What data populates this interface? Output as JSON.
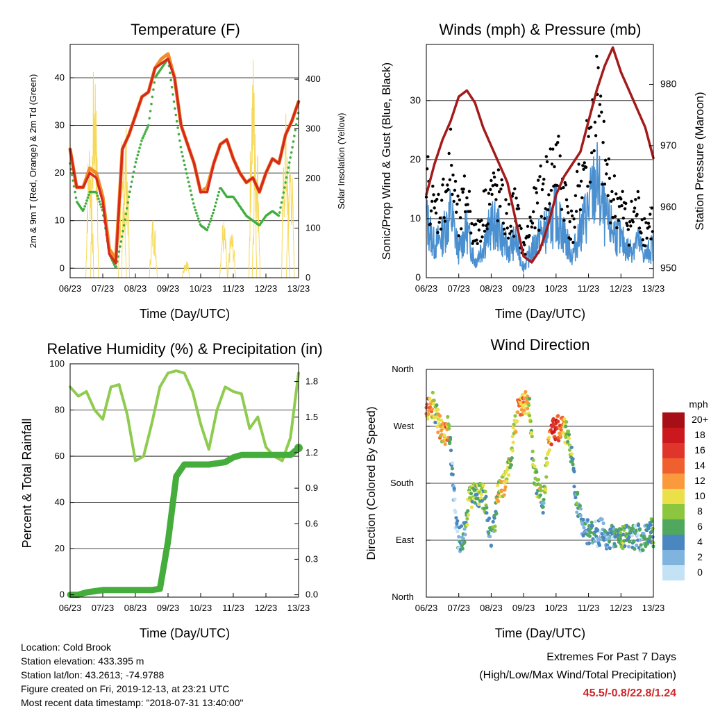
{
  "panels": {
    "temperature": {
      "title": "Temperature (F)",
      "ylabel_left": "2m & 9m T (Red, Orange) & 2m Td (Green)",
      "ylabel_right": "Solar Insolation (Yellow)",
      "xlabel": "Time (Day/UTC)"
    },
    "winds": {
      "title": "Winds (mph) & Pressure (mb)",
      "ylabel_left": "Sonic/Prop Wind & Gust (Blue, Black)",
      "ylabel_right": "Station Pressure (Maroon)",
      "xlabel": "Time (Day/UTC)"
    },
    "humidity": {
      "title": "Relative Humidity (%) & Precipitation (in)",
      "ylabel_left": "Percent & Total Rainfall",
      "xlabel": "Time (Day/UTC)"
    },
    "direction": {
      "title": "Wind Direction",
      "ylabel_left": "Direction (Colored By Speed)",
      "xlabel": "Time (Day/UTC)"
    }
  },
  "colorbar": {
    "unit": "mph",
    "labels": [
      "20+",
      "18",
      "16",
      "14",
      "12",
      "10",
      "8",
      "6",
      "4",
      "2",
      "0"
    ],
    "colors": [
      "#a50f15",
      "#cb181d",
      "#e0352b",
      "#f0602e",
      "#fb9a3c",
      "#ebe04a",
      "#8cc63f",
      "#4fa85e",
      "#4a86c0",
      "#7fb4df",
      "#c4e2f5"
    ]
  },
  "station_info": {
    "location": "Location: Cold Brook",
    "elevation": "Station elevation: 433.395 m",
    "latlon": "Station lat/lon: 43.2613; -74.9788",
    "created": "Figure created on Fri, 2019-12-13, at 23:21 UTC",
    "recent": "Most recent data timestamp: \"2018-07-31 13:40:00\""
  },
  "extremes": {
    "title": "Extremes For Past 7 Days",
    "subtitle": "(High/Low/Max Wind/Total Precipitation)",
    "values": "45.5/-0.8/22.8/1.24"
  },
  "colors": {
    "temp_2m": "#d62a1e",
    "temp_9m": "#f28c28",
    "dewpoint": "#3fae3f",
    "solar": "#f6d95a",
    "wind": "#4a90d0",
    "gust": "#000000",
    "pressure": "#a31b1b",
    "rh": "#8fcb4f",
    "precip": "#45ad3c"
  },
  "chart_data": [
    {
      "type": "line",
      "title": "Temperature (F)",
      "xlabel": "Time (Day/UTC)",
      "x_ticks": [
        "06/23",
        "07/23",
        "08/23",
        "09/23",
        "10/23",
        "11/23",
        "12/23",
        "13/23"
      ],
      "x": [
        6.0,
        6.2,
        6.4,
        6.6,
        6.8,
        7.0,
        7.2,
        7.4,
        7.6,
        7.8,
        8.0,
        8.2,
        8.4,
        8.6,
        8.8,
        9.0,
        9.2,
        9.4,
        9.6,
        9.8,
        10.0,
        10.2,
        10.4,
        10.6,
        10.8,
        11.0,
        11.2,
        11.4,
        11.6,
        11.8,
        12.0,
        12.2,
        12.4,
        12.6,
        12.8,
        13.0
      ],
      "series": [
        {
          "name": "2m T",
          "values": [
            25,
            17,
            17,
            20,
            19,
            14,
            3,
            1,
            25,
            28,
            32,
            36,
            37,
            42,
            43,
            44,
            40,
            30,
            26,
            22,
            16,
            16,
            22,
            26,
            27,
            23,
            20,
            18,
            19,
            16,
            20,
            23,
            22,
            28,
            31,
            35
          ]
        },
        {
          "name": "9m T",
          "values": [
            25,
            17,
            17,
            21,
            20,
            15,
            4,
            2,
            25,
            28,
            32,
            36,
            37,
            42,
            44,
            45,
            40,
            30,
            26,
            22,
            16,
            17,
            22,
            26,
            27,
            23,
            20,
            18,
            19,
            16,
            20,
            23,
            22,
            28,
            31,
            35
          ]
        },
        {
          "name": "2m Td",
          "values": [
            22,
            14,
            12,
            16,
            16,
            12,
            3,
            0,
            7,
            15,
            22,
            27,
            30,
            40,
            42,
            44,
            34,
            25,
            19,
            13,
            9,
            8,
            12,
            17,
            15,
            15,
            13,
            11,
            10,
            9,
            11,
            12,
            11,
            18,
            25,
            33
          ]
        }
      ],
      "secondary_axis": {
        "label": "Solar Insolation (Yellow)",
        "ylim": [
          0,
          470
        ]
      },
      "ylim": [
        -2,
        47
      ]
    },
    {
      "type": "line",
      "title": "Winds (mph) & Pressure (mb)",
      "xlabel": "Time (Day/UTC)",
      "x_ticks": [
        "06/23",
        "07/23",
        "08/23",
        "09/23",
        "10/23",
        "11/23",
        "12/23",
        "13/23"
      ],
      "x": [
        6.0,
        6.25,
        6.5,
        6.75,
        7.0,
        7.25,
        7.5,
        7.75,
        8.0,
        8.25,
        8.5,
        8.75,
        9.0,
        9.25,
        9.5,
        9.75,
        10.0,
        10.25,
        10.5,
        10.75,
        11.0,
        11.25,
        11.5,
        11.75,
        12.0,
        12.25,
        12.5,
        12.75,
        13.0
      ],
      "series": [
        {
          "name": "Sonic/Prop Wind",
          "values": [
            11,
            6,
            8,
            12,
            5,
            9,
            3,
            6,
            10,
            9,
            5,
            7,
            2,
            5,
            8,
            9,
            12,
            8,
            4,
            9,
            13,
            18,
            11,
            9,
            7,
            5,
            7,
            4,
            6
          ]
        },
        {
          "name": "Gust",
          "values": [
            19,
            12,
            14,
            21,
            10,
            16,
            7,
            12,
            16,
            15,
            10,
            13,
            5,
            11,
            15,
            18,
            22,
            16,
            9,
            18,
            24,
            33,
            20,
            15,
            13,
            10,
            13,
            9,
            11
          ]
        }
      ],
      "pressure": {
        "label": "Station Pressure (Maroon)",
        "x": [
          6.0,
          6.25,
          6.5,
          6.75,
          7.0,
          7.25,
          7.5,
          7.75,
          8.0,
          8.25,
          8.5,
          8.75,
          9.0,
          9.25,
          9.5,
          9.75,
          10.0,
          10.25,
          10.5,
          10.75,
          11.0,
          11.25,
          11.5,
          11.75,
          12.0,
          12.25,
          12.5,
          12.75,
          13.0
        ],
        "values": [
          962,
          967,
          971,
          974,
          978,
          979,
          977,
          973,
          970,
          967,
          964,
          958,
          952,
          951,
          953,
          957,
          962,
          965,
          967,
          969,
          974,
          979,
          983,
          986,
          982,
          979,
          976,
          973,
          968
        ],
        "ylim": [
          948.5,
          986.5
        ]
      },
      "ylim": [
        0,
        39.5
      ]
    },
    {
      "type": "line",
      "title": "Relative Humidity (%) & Precipitation (in)",
      "xlabel": "Time (Day/UTC)",
      "x_ticks": [
        "06/23",
        "07/23",
        "08/23",
        "09/23",
        "10/23",
        "11/23",
        "12/23",
        "13/23"
      ],
      "x": [
        6.0,
        6.25,
        6.5,
        6.75,
        7.0,
        7.25,
        7.5,
        7.75,
        8.0,
        8.25,
        8.5,
        8.75,
        9.0,
        9.25,
        9.5,
        9.75,
        10.0,
        10.25,
        10.5,
        10.75,
        11.0,
        11.25,
        11.5,
        11.75,
        12.0,
        12.25,
        12.5,
        12.75,
        13.0
      ],
      "series": [
        {
          "name": "Relative Humidity",
          "values": [
            90,
            86,
            88,
            80,
            76,
            90,
            91,
            78,
            58,
            60,
            74,
            90,
            96,
            97,
            96,
            88,
            74,
            63,
            80,
            90,
            88,
            87,
            72,
            77,
            64,
            60,
            58,
            68,
            96
          ]
        },
        {
          "name": "Precipitation",
          "values": [
            0.0,
            0.0,
            0.02,
            0.03,
            0.04,
            0.04,
            0.04,
            0.04,
            0.04,
            0.04,
            0.04,
            0.05,
            0.45,
            1.0,
            1.1,
            1.1,
            1.1,
            1.1,
            1.11,
            1.12,
            1.16,
            1.18,
            1.18,
            1.18,
            1.18,
            1.18,
            1.18,
            1.18,
            1.24
          ]
        }
      ],
      "secondary_axis": {
        "ylim": [
          -0.02,
          1.95
        ]
      },
      "ylim": [
        -1,
        100
      ]
    },
    {
      "type": "scatter",
      "title": "Wind Direction",
      "xlabel": "Time (Day/UTC)",
      "x_ticks": [
        "06/23",
        "07/23",
        "08/23",
        "09/23",
        "10/23",
        "11/23",
        "12/23",
        "13/23"
      ],
      "y_ticks": [
        "North",
        "East",
        "South",
        "West",
        "North"
      ],
      "series": [
        {
          "name": "direction",
          "x": [
            6.0,
            6.1,
            6.2,
            6.3,
            6.4,
            6.5,
            6.6,
            6.7,
            6.8,
            6.9,
            7.0,
            7.1,
            7.2,
            7.3,
            7.4,
            7.5,
            7.6,
            7.7,
            7.8,
            7.9,
            8.0,
            8.1,
            8.2,
            8.3,
            8.4,
            8.5,
            8.6,
            8.7,
            8.8,
            8.9,
            9.0,
            9.1,
            9.2,
            9.3,
            9.4,
            9.5,
            9.6,
            9.7,
            9.8,
            9.9,
            10.0,
            10.1,
            10.2,
            10.3,
            10.4,
            10.5,
            10.6,
            10.7,
            10.8,
            10.9,
            11.0,
            11.1,
            11.2,
            11.3,
            11.4,
            11.5,
            11.6,
            11.7,
            11.8,
            11.9,
            12.0,
            12.1,
            12.2,
            12.3,
            12.4,
            12.5,
            12.6,
            12.7,
            12.8,
            12.9,
            13.0
          ],
          "values": [
            295,
            300,
            305,
            290,
            270,
            255,
            260,
            270,
            200,
            120,
            90,
            95,
            100,
            150,
            160,
            165,
            162,
            160,
            155,
            120,
            100,
            110,
            160,
            170,
            180,
            200,
            220,
            260,
            290,
            300,
            305,
            310,
            290,
            200,
            180,
            170,
            150,
            200,
            250,
            260,
            270,
            265,
            265,
            260,
            250,
            220,
            160,
            140,
            120,
            110,
            100,
            105,
            100,
            100,
            105,
            100,
            90,
            95,
            95,
            100,
            100,
            95,
            95,
            90,
            95,
            100,
            90,
            95,
            100,
            110,
            100
          ],
          "speeds": [
            13,
            14,
            12,
            8,
            12,
            10,
            14,
            8,
            4,
            2,
            4,
            5,
            6,
            10,
            9,
            8,
            8,
            8,
            9,
            4,
            5,
            6,
            10,
            10,
            11,
            10,
            9,
            9,
            13,
            14,
            14,
            12,
            10,
            8,
            8,
            10,
            4,
            9,
            14,
            18,
            17,
            16,
            14,
            10,
            9,
            7,
            6,
            6,
            4,
            4,
            5,
            6,
            4,
            3,
            4,
            6,
            4,
            5,
            4,
            6,
            7,
            8,
            6,
            5,
            4,
            4,
            4,
            5,
            6,
            7,
            7
          ]
        }
      ],
      "ylim": [
        0,
        360
      ],
      "colorbar": {
        "label": "mph",
        "levels": [
          0,
          2,
          4,
          6,
          8,
          10,
          12,
          14,
          16,
          18,
          20
        ]
      }
    }
  ]
}
